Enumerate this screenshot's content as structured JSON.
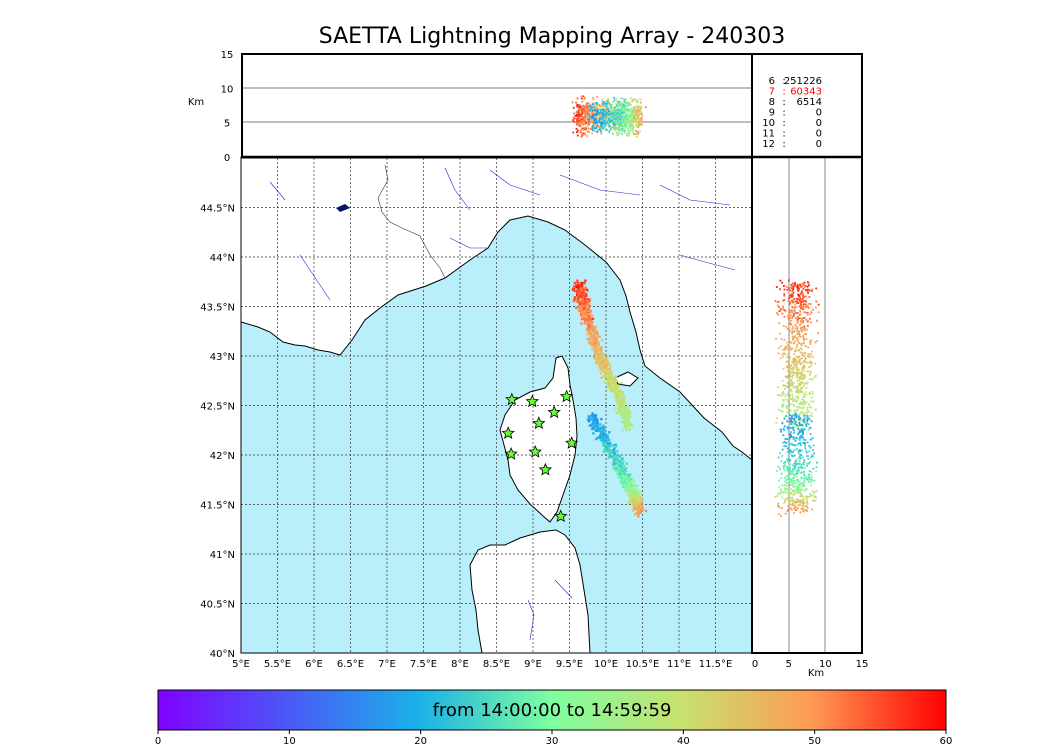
{
  "title": "SAETTA Lightning Mapping Array - 240303",
  "colorbar": {
    "label": "from 14:00:00 to 14:59:59",
    "min": 0,
    "max": 60,
    "ticks": [
      0,
      10,
      20,
      30,
      40,
      50,
      60
    ]
  },
  "colors": {
    "sea": "#b9effb",
    "land": "#ffffff",
    "rivers": "#2222dd",
    "stations": "#66ff33",
    "highlight": "#ff0000"
  },
  "chart_data": [
    {
      "type": "scatter",
      "panel": "map",
      "xlim": [
        5,
        12
      ],
      "ylim": [
        40,
        45
      ],
      "x_ticks": [
        "5°E",
        "5.5°E",
        "6°E",
        "6.5°E",
        "7°E",
        "7.5°E",
        "8°E",
        "8.5°E",
        "9°E",
        "9.5°E",
        "10°E",
        "10.5°E",
        "11°E",
        "11.5°E"
      ],
      "y_ticks": [
        "40°N",
        "40.5°N",
        "41°N",
        "41.5°N",
        "42°N",
        "42.5°N",
        "43°N",
        "43.5°N",
        "44°N",
        "44.5°N"
      ],
      "grid": true,
      "series": [
        {
          "lon": [
            9.6,
            9.7,
            9.9,
            10.1,
            10.3
          ],
          "lat": [
            43.75,
            43.45,
            43.0,
            42.7,
            42.3
          ],
          "time_min": [
            56,
            52,
            45,
            40,
            35
          ]
        },
        {
          "lon": [
            9.8,
            10.1,
            10.3,
            10.45
          ],
          "lat": [
            42.4,
            42.0,
            41.7,
            41.45
          ],
          "time_min": [
            18,
            24,
            30,
            50
          ]
        }
      ],
      "stations_lon": [
        8.71,
        8.99,
        9.08,
        9.29,
        9.46,
        8.66,
        8.7,
        9.03,
        9.17,
        9.53,
        9.38
      ],
      "stations_lat": [
        42.56,
        42.54,
        42.32,
        42.43,
        42.59,
        42.22,
        42.01,
        42.03,
        41.85,
        42.12,
        41.38
      ]
    },
    {
      "type": "scatter",
      "panel": "lon-altitude",
      "xlim": [
        5,
        12
      ],
      "ylim": [
        0,
        15
      ],
      "y_ticks": [
        "0",
        "5",
        "10",
        "15"
      ],
      "ylabel": "Km"
    },
    {
      "type": "scatter",
      "panel": "altitude-lat",
      "xlim": [
        0,
        15
      ],
      "x_ticks": [
        "0",
        "5",
        "10",
        "15"
      ],
      "xlabel": "Km"
    },
    {
      "type": "table",
      "panel": "stations-count",
      "rows": [
        {
          "n": "6",
          "sep": ":",
          "count": "251226",
          "highlight": false
        },
        {
          "n": "7",
          "sep": ":",
          "count": "60343",
          "highlight": true
        },
        {
          "n": "8",
          "sep": ":",
          "count": "6514",
          "highlight": false
        },
        {
          "n": "9",
          "sep": ":",
          "count": "0",
          "highlight": false
        },
        {
          "n": "10",
          "sep": ":",
          "count": "0",
          "highlight": false
        },
        {
          "n": "11",
          "sep": ":",
          "count": "0",
          "highlight": false
        },
        {
          "n": "12",
          "sep": ":",
          "count": "0",
          "highlight": false
        }
      ]
    }
  ]
}
